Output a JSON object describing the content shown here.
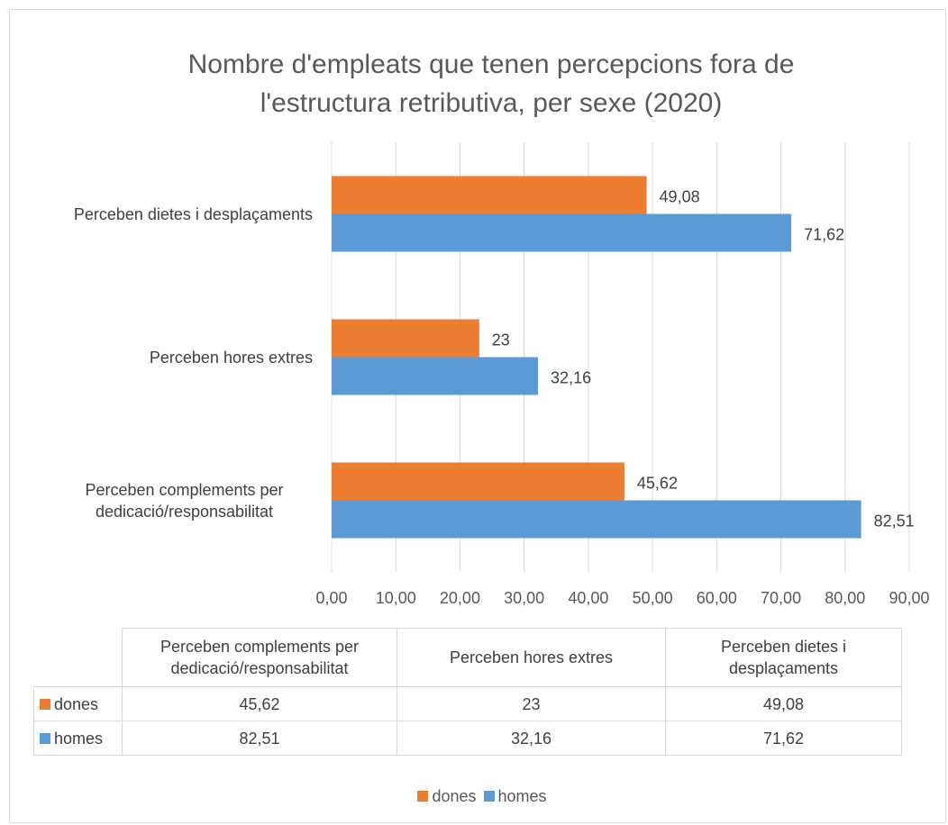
{
  "chart_data": {
    "type": "bar",
    "orientation": "horizontal",
    "title": "Nombre d'empleats que tenen percepcions fora de l'estructura retributiva, per sexe (2020)",
    "categories": [
      "Perceben complements per dedicació/responsabilitat",
      "Perceben hores extres",
      "Perceben dietes i desplaçaments"
    ],
    "series": [
      {
        "name": "dones",
        "color": "#ed7d31",
        "values": [
          45.62,
          23,
          49.08
        ],
        "value_labels": [
          "45,62",
          "23",
          "49,08"
        ]
      },
      {
        "name": "homes",
        "color": "#5b9bd5",
        "values": [
          82.51,
          32.16,
          71.62
        ],
        "value_labels": [
          "82,51",
          "32,16",
          "71,62"
        ]
      }
    ],
    "xlim": [
      0,
      90
    ],
    "xticks": [
      {
        "value": 0,
        "label": "0,00"
      },
      {
        "value": 10,
        "label": "10,00"
      },
      {
        "value": 20,
        "label": "20,00"
      },
      {
        "value": 30,
        "label": "30,00"
      },
      {
        "value": 40,
        "label": "40,00"
      },
      {
        "value": 50,
        "label": "50,00"
      },
      {
        "value": 60,
        "label": "60,00"
      },
      {
        "value": 70,
        "label": "70,00"
      },
      {
        "value": 80,
        "label": "80,00"
      },
      {
        "value": 90,
        "label": "90,00"
      }
    ],
    "grid": true,
    "legend": "bottom",
    "data_table": true
  }
}
